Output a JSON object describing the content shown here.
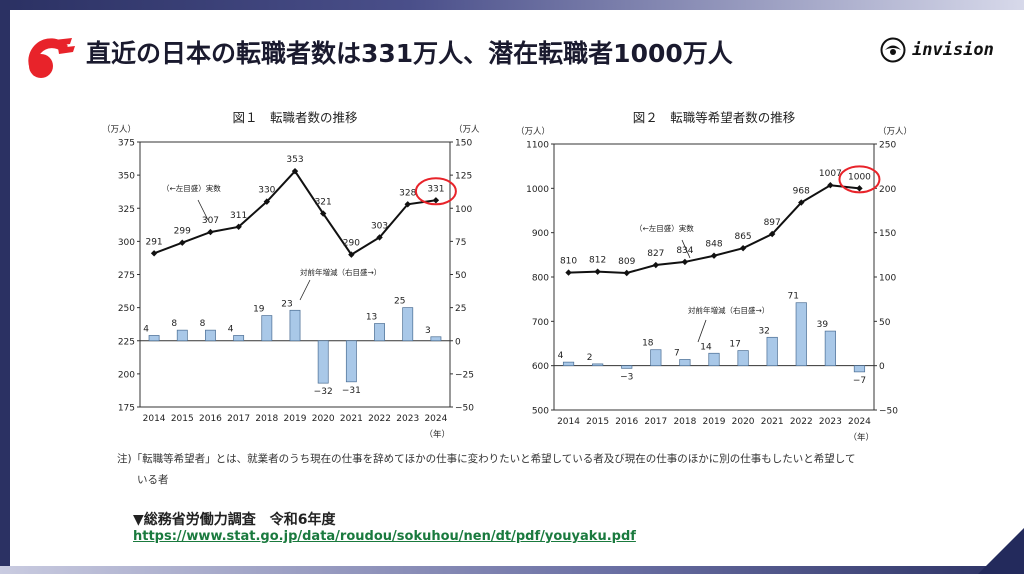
{
  "slide": {
    "title": "直近の日本の転職者数は331万人、潜在転職者1000万人",
    "brand": "invision",
    "note_line1": "注)「転職等希望者」とは、就業者のうち現在の仕事を辞めてほかの仕事に変わりたいと希望している者及び現在の仕事のほかに別の仕事もしたいと希望して",
    "note_line2": "いる者",
    "source": "▼総務省労働力調査　令和6年度",
    "url": "https://www.stat.go.jp/data/roudou/sokuhou/nen/dt/pdf/youyaku.pdf",
    "colors": {
      "accent_red": "#e8232a",
      "navy": "#2b3163",
      "bar": "#a9c8e8",
      "link": "#1a7a3e"
    }
  },
  "chart_data": [
    {
      "type": "line+bar",
      "title": "図１　転職者数の推移",
      "left_unit": "（万人）",
      "right_unit": "（万人）",
      "x_unit": "（年）",
      "line_label": "（←左目盛）実数",
      "bar_label": "対前年増減（右目盛→）",
      "categories": [
        "2014",
        "2015",
        "2016",
        "2017",
        "2018",
        "2019",
        "2020",
        "2021",
        "2022",
        "2023",
        "2024"
      ],
      "line_values": [
        291,
        299,
        307,
        311,
        330,
        353,
        321,
        290,
        303,
        328,
        331
      ],
      "bar_values": [
        4,
        8,
        8,
        4,
        19,
        23,
        -32,
        -31,
        13,
        25,
        3
      ],
      "bar_labels": [
        "4",
        "8",
        "8",
        "4",
        "19",
        "23",
        "−32",
        "−31",
        "13",
        "25",
        "3"
      ],
      "left_ylim": [
        175,
        375
      ],
      "left_ticks": [
        "175",
        "200",
        "225",
        "250",
        "275",
        "300",
        "325",
        "350",
        "375"
      ],
      "right_ylim": [
        -50,
        150
      ],
      "right_ticks": [
        "−50",
        "−25",
        "0",
        "25",
        "50",
        "75",
        "100",
        "125",
        "150"
      ],
      "highlight_index": 10
    },
    {
      "type": "line+bar",
      "title": "図２　転職等希望者数の推移",
      "left_unit": "（万人）",
      "right_unit": "（万人）",
      "x_unit": "（年）",
      "line_label": "（←左目盛）実数",
      "bar_label": "対前年増減（右目盛→）",
      "categories": [
        "2014",
        "2015",
        "2016",
        "2017",
        "2018",
        "2019",
        "2020",
        "2021",
        "2022",
        "2023",
        "2024"
      ],
      "line_values": [
        810,
        812,
        809,
        827,
        834,
        848,
        865,
        897,
        968,
        1007,
        1000
      ],
      "bar_values": [
        4,
        2,
        -3,
        18,
        7,
        14,
        17,
        32,
        71,
        39,
        -7
      ],
      "bar_labels": [
        "4",
        "2",
        "−3",
        "18",
        "7",
        "14",
        "17",
        "32",
        "71",
        "39",
        "−7"
      ],
      "left_ylim": [
        500,
        1100
      ],
      "left_ticks": [
        "500",
        "600",
        "700",
        "800",
        "900",
        "1000",
        "1100"
      ],
      "right_ylim": [
        -50,
        250
      ],
      "right_ticks": [
        "−50",
        "0",
        "50",
        "100",
        "150",
        "200",
        "250"
      ],
      "highlight_index": 10
    }
  ]
}
